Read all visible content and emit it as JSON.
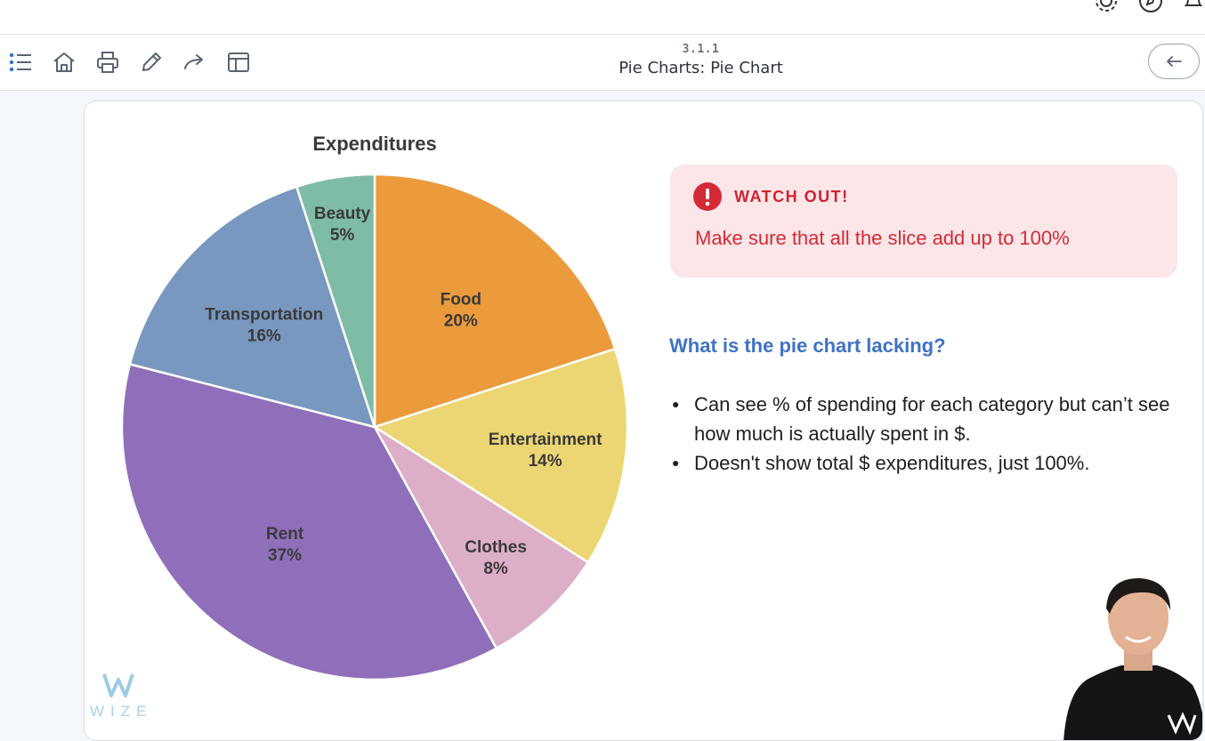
{
  "header": {
    "lesson_number": "3.1.1",
    "lesson_title": "Pie Charts: Pie Chart",
    "toolbar_icons": [
      "list-icon",
      "home-icon",
      "print-icon",
      "pencil-icon",
      "forward-icon",
      "layout-icon"
    ],
    "top_icons": [
      "gear-icon",
      "compass-icon",
      "bell-icon"
    ]
  },
  "chart_data": {
    "type": "pie",
    "title": "Expenditures",
    "categories": [
      "Food",
      "Entertainment",
      "Clothes",
      "Rent",
      "Transportation",
      "Beauty"
    ],
    "values": [
      20,
      14,
      8,
      37,
      16,
      5
    ],
    "value_labels": [
      "20%",
      "14%",
      "8%",
      "37%",
      "16%",
      "5%"
    ],
    "colors": [
      "#eb9a3c",
      "#ecd673",
      "#ddaec7",
      "#8f6fba",
      "#7998bf",
      "#7fbca5"
    ],
    "start_angle_deg": 0,
    "direction": "clockwise"
  },
  "callout": {
    "title": "WATCH OUT!",
    "text": "Make sure that all the slice add up to 100%",
    "color": "#d42a37",
    "background": "#fde6e8"
  },
  "question": "What is the pie chart lacking?",
  "bullets": [
    "Can see % of spending for each category but can’t see how much is actually spent in $.",
    "Doesn't show total $ expenditures, just 100%."
  ],
  "brand": {
    "word": "WIZE"
  }
}
